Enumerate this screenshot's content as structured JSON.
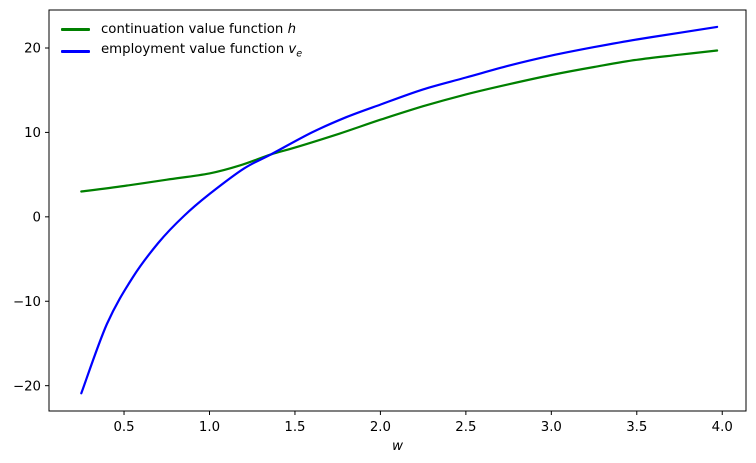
{
  "figure": {
    "background": "#ffffff",
    "spine_color": "#000000",
    "tick_color": "#000000"
  },
  "chart_data": {
    "type": "line",
    "title": "",
    "xlabel": "w",
    "ylabel": "",
    "xlim": [
      0.061,
      4.139
    ],
    "ylim": [
      -23.0,
      24.5
    ],
    "grid": false,
    "legend_position": "upper left",
    "x_ticks": {
      "values": [
        0.5,
        1.0,
        1.5,
        2.0,
        2.5,
        3.0,
        3.5,
        4.0
      ],
      "labels": [
        "0.5",
        "1.0",
        "1.5",
        "2.0",
        "2.5",
        "3.0",
        "3.5",
        "4.0"
      ]
    },
    "y_ticks": {
      "values": [
        -20,
        -10,
        0,
        10,
        20
      ],
      "labels": [
        "−20",
        "−10",
        "0",
        "10",
        "20"
      ]
    },
    "series": [
      {
        "name": "continuation value function h",
        "color": "#008000",
        "line_width": 2.2,
        "x": [
          0.25,
          0.5,
          0.75,
          1.0,
          1.18,
          1.36,
          1.5,
          1.76,
          2.0,
          2.25,
          2.5,
          2.75,
          3.0,
          3.25,
          3.5,
          3.75,
          3.97
        ],
        "y": [
          3.0,
          3.65,
          4.4,
          5.15,
          6.1,
          7.4,
          8.2,
          9.85,
          11.5,
          13.1,
          14.5,
          15.7,
          16.8,
          17.75,
          18.6,
          19.2,
          19.7
        ]
      },
      {
        "name": "employment value function v_e",
        "color": "#0000ff",
        "line_width": 2.2,
        "x": [
          0.25,
          0.4,
          0.55,
          0.7,
          0.85,
          1.0,
          1.2,
          1.36,
          1.6,
          1.8,
          2.0,
          2.25,
          2.5,
          2.75,
          3.0,
          3.25,
          3.5,
          3.75,
          3.97
        ],
        "y": [
          -20.9,
          -12.7,
          -7.2,
          -3.1,
          0.1,
          2.7,
          5.7,
          7.4,
          10.0,
          11.8,
          13.3,
          15.1,
          16.5,
          17.9,
          19.1,
          20.1,
          21.0,
          21.8,
          22.5
        ]
      }
    ]
  },
  "legend": {
    "items": [
      {
        "prefix": "continuation value function ",
        "symbol": "h",
        "subscript": "",
        "color": "#008000"
      },
      {
        "prefix": "employment value function ",
        "symbol": "v",
        "subscript": "e",
        "color": "#0000ff"
      }
    ]
  }
}
